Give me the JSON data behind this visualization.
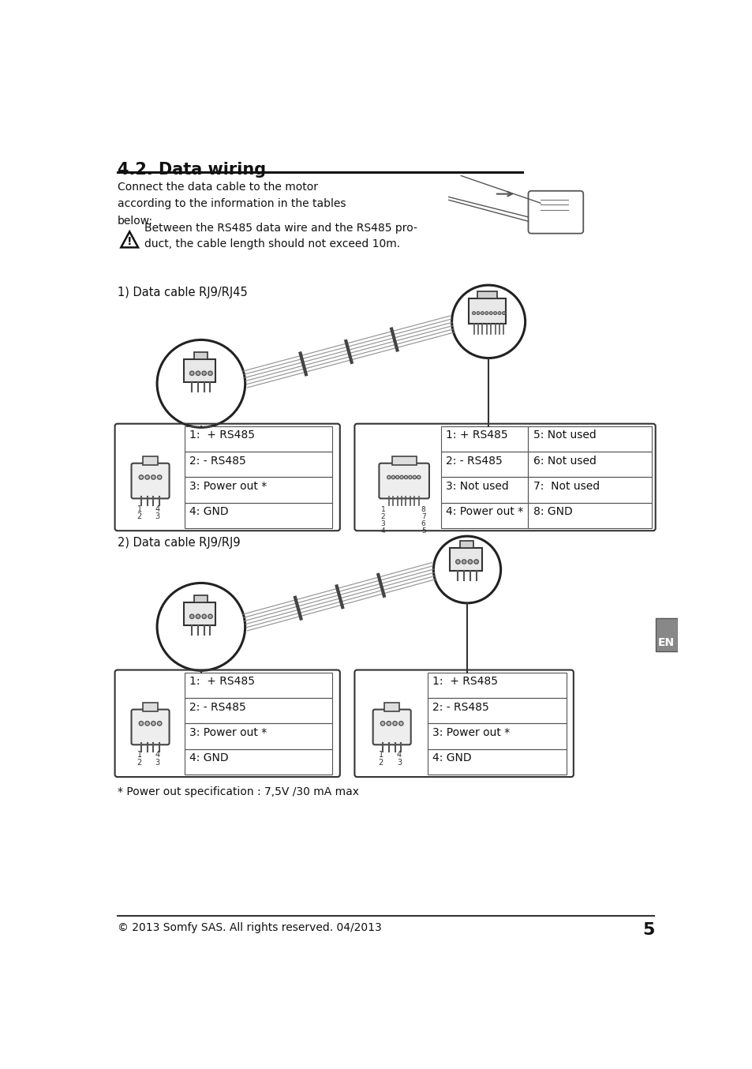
{
  "bg_color": "#ffffff",
  "title": "4.2. Data wiring",
  "footer_text": "© 2013 Somfy SAS. All rights reserved. 04/2013",
  "page_number": "5",
  "intro_text": "Connect the data cable to the motor\naccording to the information in the tables\nbelow:",
  "warning_text": "Between the RS485 data wire and the RS485 pro-\nduct, the cable length should not exceed 10m.",
  "section1_label": "1) Data cable RJ9/RJ45",
  "section2_label": "2) Data cable RJ9/RJ9",
  "footnote": "* Power out specification : 7,5V /30 mA max",
  "table1_left": [
    "1:  + RS485",
    "2: - RS485",
    "3: Power out *",
    "4: GND"
  ],
  "table1_right_left": [
    "1: + RS485",
    "2: - RS485",
    "3: Not used",
    "4: Power out *"
  ],
  "table1_right_right": [
    "5: Not used",
    "6: Not used",
    "7:  Not used",
    "8: GND"
  ],
  "table2_left": [
    "1:  + RS485",
    "2: - RS485",
    "3: Power out *",
    "4: GND"
  ],
  "table2_right": [
    "1:  + RS485",
    "2: - RS485",
    "3: Power out *",
    "4: GND"
  ]
}
